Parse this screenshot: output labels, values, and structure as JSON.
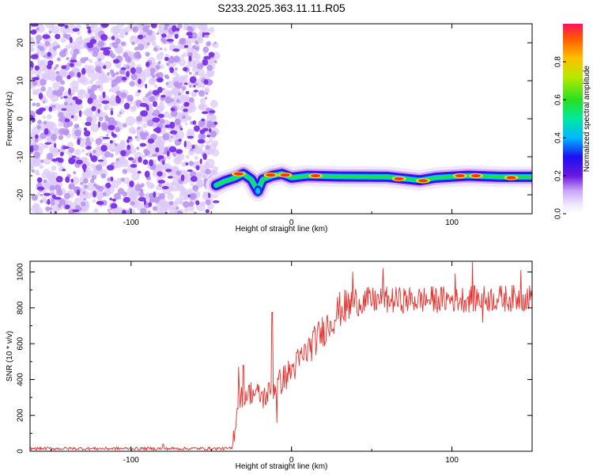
{
  "figure": {
    "title": "S233.2025.363.11.11.R05"
  },
  "chart_data": [
    {
      "type": "heatmap",
      "name": "spectrogram",
      "xlabel": "Height of straight line (km)",
      "ylabel": "Frequency (Hz)",
      "xlim": [
        -163,
        150
      ],
      "ylim": [
        -25,
        25
      ],
      "x_ticks": [
        -100,
        0,
        100
      ],
      "y_ticks": [
        20,
        10,
        0,
        -10,
        -20
      ],
      "noise_region_x": [
        -163,
        -47
      ],
      "signal_band": {
        "x_start": -47,
        "x_end": 150,
        "center_frequency": -15,
        "points": [
          {
            "x": -47,
            "y": -17.5
          },
          {
            "x": -42,
            "y": -16.5
          },
          {
            "x": -35,
            "y": -15.5
          },
          {
            "x": -30,
            "y": -14.5
          },
          {
            "x": -25,
            "y": -16
          },
          {
            "x": -21,
            "y": -19
          },
          {
            "x": -18,
            "y": -16
          },
          {
            "x": -12,
            "y": -15
          },
          {
            "x": -6,
            "y": -14.5
          },
          {
            "x": 0,
            "y": -15.5
          },
          {
            "x": 10,
            "y": -15
          },
          {
            "x": 30,
            "y": -15.2
          },
          {
            "x": 60,
            "y": -15.3
          },
          {
            "x": 80,
            "y": -16.2
          },
          {
            "x": 90,
            "y": -15.5
          },
          {
            "x": 110,
            "y": -15
          },
          {
            "x": 130,
            "y": -15.3
          },
          {
            "x": 150,
            "y": -15.3
          }
        ],
        "hot_segments": [
          {
            "x": -33,
            "y": -14.5
          },
          {
            "x": -13,
            "y": -14.8
          },
          {
            "x": -4,
            "y": -14.8
          },
          {
            "x": 15,
            "y": -15
          },
          {
            "x": 67,
            "y": -15.8
          },
          {
            "x": 82,
            "y": -16.3
          },
          {
            "x": 105,
            "y": -15
          },
          {
            "x": 115,
            "y": -15
          },
          {
            "x": 137,
            "y": -15.5
          }
        ]
      },
      "colorbar": {
        "label": "Normalized spectral amplitude",
        "range": [
          0,
          1
        ],
        "ticks": [
          "0.0",
          "0.2",
          "0.4",
          "0.6",
          "0.8"
        ]
      }
    },
    {
      "type": "line",
      "name": "snr",
      "xlabel": "Height of straight line (km)",
      "ylabel": "SNR (10 * v/v)",
      "xlim": [
        -163,
        150
      ],
      "ylim": [
        0,
        1060
      ],
      "x_ticks": [
        -100,
        0,
        100
      ],
      "y_ticks": [
        0,
        200,
        400,
        600,
        800,
        1000
      ],
      "line_color": "#e8302c",
      "series": [
        {
          "name": "SNR",
          "trend": [
            {
              "x": -163,
              "y": 15
            },
            {
              "x": -37,
              "y": 15
            },
            {
              "x": -33,
              "y": 300
            },
            {
              "x": -25,
              "y": 330
            },
            {
              "x": -17,
              "y": 300
            },
            {
              "x": -10,
              "y": 360
            },
            {
              "x": 0,
              "y": 450
            },
            {
              "x": 15,
              "y": 620
            },
            {
              "x": 30,
              "y": 790
            },
            {
              "x": 45,
              "y": 840
            },
            {
              "x": 150,
              "y": 855
            }
          ],
          "spikes": [
            {
              "x": -80,
              "y": 40
            },
            {
              "x": -33,
              "y": 470
            },
            {
              "x": -30,
              "y": 480
            },
            {
              "x": -12,
              "y": 775
            },
            {
              "x": -9,
              "y": 160
            },
            {
              "x": 38,
              "y": 1000
            },
            {
              "x": 57,
              "y": 1020
            },
            {
              "x": 102,
              "y": 990
            },
            {
              "x": 113,
              "y": 1055
            },
            {
              "x": 119,
              "y": 720
            },
            {
              "x": 143,
              "y": 1010
            }
          ]
        }
      ]
    }
  ]
}
